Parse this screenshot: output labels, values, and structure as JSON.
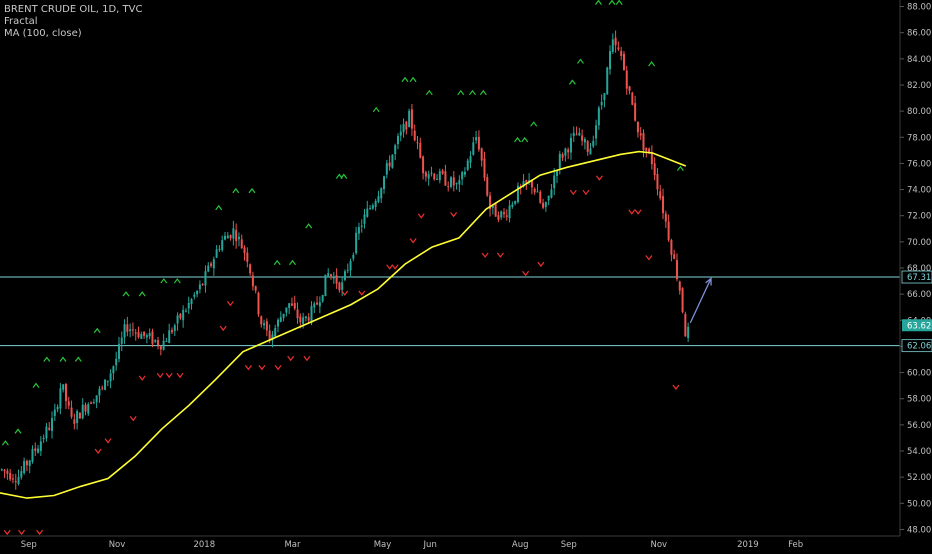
{
  "legend": {
    "symbol_line": "BRENT CRUDE OIL, 1D, TVC",
    "indicator_1": "Fractal",
    "indicator_2": "MA (100, close)"
  },
  "colors": {
    "background": "#000000",
    "up_candle": "#26a69a",
    "down_candle": "#ef5350",
    "ma_line": "#ffff33",
    "fractal_up": "#26c63a",
    "fractal_down": "#ef3030",
    "hline": "#7fd3d6",
    "arrow": "#7f8fd6",
    "axis_text": "#c0c0c0",
    "price_label_bg": "#26a69a"
  },
  "chart_data": {
    "type": "candlestick",
    "title": "BRENT CRUDE OIL, 1D, TVC",
    "y_ticks": [
      "88.00",
      "86.00",
      "84.00",
      "82.00",
      "80.00",
      "78.00",
      "76.00",
      "74.00",
      "72.00",
      "70.00",
      "68.00",
      "66.00",
      "64.00",
      "62.00",
      "60.00",
      "58.00",
      "56.00",
      "54.00",
      "52.00",
      "50.00",
      "48.00"
    ],
    "ylim": [
      47.5,
      88.5
    ],
    "x_ticks": [
      {
        "label": "Sep",
        "pos": 0.032
      },
      {
        "label": "Nov",
        "pos": 0.13
      },
      {
        "label": "2018",
        "pos": 0.227
      },
      {
        "label": "Mar",
        "pos": 0.325
      },
      {
        "label": "May",
        "pos": 0.425
      },
      {
        "label": "Jun",
        "pos": 0.478
      },
      {
        "label": "Aug",
        "pos": 0.578
      },
      {
        "label": "Sep",
        "pos": 0.632
      },
      {
        "label": "Nov",
        "pos": 0.732
      },
      {
        "label": "2019",
        "pos": 0.831
      },
      {
        "label": "Feb",
        "pos": 0.884
      }
    ],
    "price_labels": [
      {
        "value": 67.31,
        "text": "67.31",
        "style": "line"
      },
      {
        "value": 63.62,
        "text": "63.62",
        "style": "last"
      },
      {
        "value": 62.06,
        "text": "62.06",
        "style": "line"
      }
    ],
    "horizontal_lines": [
      67.31,
      62.06
    ],
    "price_path": [
      [
        0.0,
        52.6
      ],
      [
        0.02,
        52.0
      ],
      [
        0.04,
        54.2
      ],
      [
        0.06,
        56.5
      ],
      [
        0.068,
        59.2
      ],
      [
        0.08,
        56.2
      ],
      [
        0.1,
        57.9
      ],
      [
        0.115,
        58.8
      ],
      [
        0.13,
        61.2
      ],
      [
        0.14,
        63.6
      ],
      [
        0.16,
        62.8
      ],
      [
        0.18,
        62.2
      ],
      [
        0.2,
        64.2
      ],
      [
        0.225,
        66.8
      ],
      [
        0.245,
        70.0
      ],
      [
        0.26,
        70.9
      ],
      [
        0.275,
        68.8
      ],
      [
        0.29,
        63.9
      ],
      [
        0.3,
        62.6
      ],
      [
        0.32,
        65.4
      ],
      [
        0.335,
        63.8
      ],
      [
        0.35,
        64.9
      ],
      [
        0.365,
        67.6
      ],
      [
        0.38,
        66.6
      ],
      [
        0.4,
        71.2
      ],
      [
        0.42,
        73.8
      ],
      [
        0.44,
        77.4
      ],
      [
        0.455,
        79.6
      ],
      [
        0.47,
        75.6
      ],
      [
        0.49,
        74.9
      ],
      [
        0.51,
        74.2
      ],
      [
        0.53,
        78.2
      ],
      [
        0.545,
        72.4
      ],
      [
        0.56,
        72.0
      ],
      [
        0.575,
        73.8
      ],
      [
        0.59,
        74.6
      ],
      [
        0.605,
        72.2
      ],
      [
        0.62,
        76.2
      ],
      [
        0.64,
        78.2
      ],
      [
        0.655,
        77.0
      ],
      [
        0.67,
        81.2
      ],
      [
        0.68,
        85.2
      ],
      [
        0.69,
        84.2
      ],
      [
        0.7,
        81.1
      ],
      [
        0.712,
        77.8
      ],
      [
        0.725,
        76.1
      ],
      [
        0.738,
        72.1
      ],
      [
        0.75,
        68.2
      ],
      [
        0.756,
        66.2
      ],
      [
        0.762,
        62.8
      ],
      [
        0.765,
        63.2
      ]
    ],
    "series": [
      {
        "name": "MA (100, close)",
        "x": [
          0.0,
          0.03,
          0.06,
          0.09,
          0.12,
          0.15,
          0.18,
          0.21,
          0.24,
          0.27,
          0.3,
          0.33,
          0.36,
          0.39,
          0.42,
          0.45,
          0.48,
          0.51,
          0.54,
          0.57,
          0.6,
          0.63,
          0.66,
          0.69,
          0.71,
          0.725,
          0.74,
          0.762
        ],
        "y": [
          50.8,
          50.4,
          50.6,
          51.3,
          51.9,
          53.6,
          55.7,
          57.5,
          59.5,
          61.6,
          62.5,
          63.4,
          64.3,
          65.2,
          66.4,
          68.3,
          69.6,
          70.3,
          72.5,
          73.8,
          75.1,
          75.7,
          76.2,
          76.7,
          76.9,
          76.8,
          76.4,
          75.8
        ]
      }
    ],
    "fractals_up": [
      [
        0.006,
        54.6
      ],
      [
        0.02,
        55.5
      ],
      [
        0.04,
        59.0
      ],
      [
        0.052,
        61.0
      ],
      [
        0.07,
        61.0
      ],
      [
        0.087,
        61.0
      ],
      [
        0.108,
        63.2
      ],
      [
        0.14,
        66.0
      ],
      [
        0.158,
        66.0
      ],
      [
        0.182,
        67.0
      ],
      [
        0.197,
        67.0
      ],
      [
        0.243,
        72.6
      ],
      [
        0.262,
        73.9
      ],
      [
        0.28,
        73.9
      ],
      [
        0.308,
        68.4
      ],
      [
        0.325,
        68.4
      ],
      [
        0.343,
        71.2
      ],
      [
        0.377,
        75.0
      ],
      [
        0.382,
        75.0
      ],
      [
        0.418,
        80.1
      ],
      [
        0.45,
        82.4
      ],
      [
        0.459,
        82.4
      ],
      [
        0.477,
        81.4
      ],
      [
        0.512,
        81.4
      ],
      [
        0.525,
        81.4
      ],
      [
        0.537,
        81.4
      ],
      [
        0.575,
        77.8
      ],
      [
        0.583,
        77.8
      ],
      [
        0.593,
        79.0
      ],
      [
        0.636,
        82.2
      ],
      [
        0.645,
        83.8
      ],
      [
        0.665,
        88.3
      ],
      [
        0.68,
        88.3
      ],
      [
        0.688,
        88.3
      ],
      [
        0.724,
        83.6
      ],
      [
        0.756,
        75.6
      ]
    ],
    "fractals_down": [
      [
        0.008,
        47.8
      ],
      [
        0.024,
        47.8
      ],
      [
        0.044,
        47.8
      ],
      [
        0.109,
        54.0
      ],
      [
        0.12,
        54.8
      ],
      [
        0.148,
        56.5
      ],
      [
        0.158,
        59.6
      ],
      [
        0.178,
        59.8
      ],
      [
        0.188,
        59.8
      ],
      [
        0.2,
        59.8
      ],
      [
        0.248,
        63.4
      ],
      [
        0.256,
        65.3
      ],
      [
        0.276,
        60.4
      ],
      [
        0.291,
        60.4
      ],
      [
        0.309,
        60.4
      ],
      [
        0.323,
        61.1
      ],
      [
        0.341,
        61.1
      ],
      [
        0.383,
        66.1
      ],
      [
        0.402,
        66.1
      ],
      [
        0.433,
        68.1
      ],
      [
        0.439,
        68.1
      ],
      [
        0.459,
        70.1
      ],
      [
        0.468,
        72.0
      ],
      [
        0.504,
        72.1
      ],
      [
        0.539,
        69.0
      ],
      [
        0.556,
        69.0
      ],
      [
        0.584,
        67.6
      ],
      [
        0.601,
        68.3
      ],
      [
        0.637,
        73.8
      ],
      [
        0.651,
        73.8
      ],
      [
        0.666,
        74.9
      ],
      [
        0.702,
        72.3
      ],
      [
        0.709,
        72.3
      ],
      [
        0.721,
        68.8
      ],
      [
        0.751,
        58.9
      ]
    ],
    "arrow": {
      "x1": 0.767,
      "y1": 63.8,
      "x2": 0.79,
      "y2": 67.2
    }
  }
}
